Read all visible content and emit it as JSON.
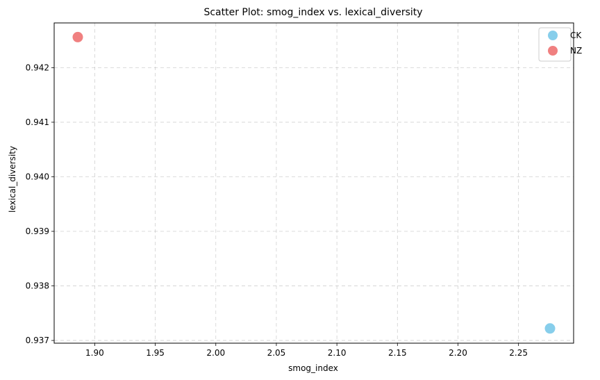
{
  "chart_data": {
    "type": "scatter",
    "title": "Scatter Plot: smog_index vs. lexical_diversity",
    "xlabel": "smog_index",
    "ylabel": "lexical_diversity",
    "xlim": [
      1.8665,
      2.2955
    ],
    "ylim": [
      0.93695,
      0.94282
    ],
    "xticks": [
      1.9,
      1.95,
      2.0,
      2.05,
      2.1,
      2.15,
      2.2,
      2.25
    ],
    "xtick_labels": [
      "1.90",
      "1.95",
      "2.00",
      "2.05",
      "2.10",
      "2.15",
      "2.20",
      "2.25"
    ],
    "yticks": [
      0.937,
      0.938,
      0.939,
      0.94,
      0.941,
      0.942
    ],
    "ytick_labels": [
      "0.937",
      "0.938",
      "0.939",
      "0.940",
      "0.941",
      "0.942"
    ],
    "grid": true,
    "legend_position": "top-right",
    "series": [
      {
        "name": "CK",
        "color": "#87CEEB",
        "points": [
          {
            "x": 2.276,
            "y": 0.93722
          }
        ]
      },
      {
        "name": "NZ",
        "color": "#F08080",
        "points": [
          {
            "x": 1.886,
            "y": 0.94256
          }
        ]
      }
    ]
  }
}
